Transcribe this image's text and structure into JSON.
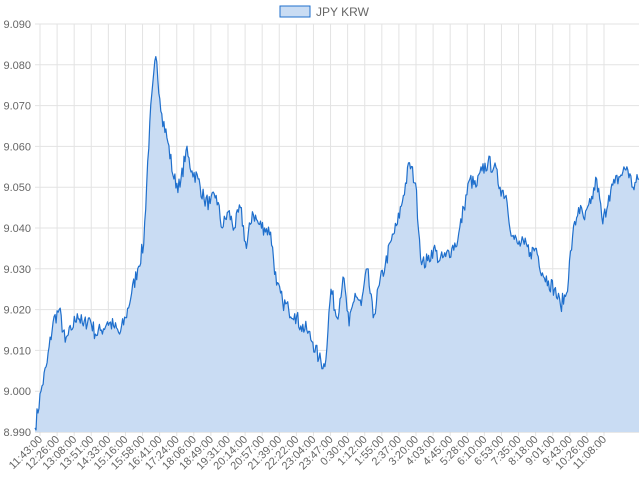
{
  "chart_data": {
    "type": "area",
    "title": "",
    "xlabel": "",
    "ylabel": "",
    "legend": {
      "position": "top-center"
    },
    "grid": true,
    "ylim": [
      8.99,
      9.09
    ],
    "y_ticks": [
      "9.090",
      "9.080",
      "9.070",
      "9.060",
      "9.050",
      "9.040",
      "9.030",
      "9.020",
      "9.010",
      "9.000",
      "8.990"
    ],
    "x_tick_labels": [
      "11:43:00",
      "12:26:00",
      "13:08:00",
      "13:51:00",
      "14:33:00",
      "15:16:00",
      "15:58:00",
      "16:41:00",
      "17:24:00",
      "18:06:00",
      "18:49:00",
      "19:31:00",
      "20:14:00",
      "20:57:00",
      "21:39:00",
      "22:22:00",
      "23:04:00",
      "23:47:00",
      "0:30:00",
      "1:12:00",
      "1:55:00",
      "2:37:00",
      "3:20:00",
      "4:03:00",
      "4:45:00",
      "5:28:00",
      "6:10:00",
      "6:53:00",
      "7:35:00",
      "8:18:00",
      "9:01:00",
      "9:43:00",
      "10:26:00",
      "11:08:00"
    ],
    "series": [
      {
        "name": "JPY KRW",
        "color": "#1f6fcc",
        "fill": "#c9dcf3",
        "values": [
          8.991,
          9.0,
          9.007,
          9.017,
          9.02,
          9.012,
          9.015,
          9.019,
          9.016,
          9.018,
          9.014,
          9.015,
          9.017,
          9.016,
          9.014,
          9.018,
          9.024,
          9.03,
          9.036,
          9.066,
          9.082,
          9.068,
          9.061,
          9.052,
          9.05,
          9.059,
          9.054,
          9.052,
          9.047,
          9.046,
          9.048,
          9.04,
          9.044,
          9.04,
          9.045,
          9.035,
          9.044,
          9.041,
          9.04,
          9.039,
          9.026,
          9.022,
          9.02,
          9.019,
          9.016,
          9.015,
          9.012,
          9.008,
          9.006,
          9.025,
          9.018,
          9.028,
          9.016,
          9.024,
          9.021,
          9.03,
          9.018,
          9.026,
          9.031,
          9.037,
          9.041,
          9.048,
          9.056,
          9.051,
          9.031,
          9.032,
          9.035,
          9.032,
          9.033,
          9.035,
          9.037,
          9.045,
          9.052,
          9.05,
          9.054,
          9.056,
          9.055,
          9.05,
          9.048,
          9.038,
          9.036,
          9.036,
          9.034,
          9.035,
          9.029,
          9.027,
          9.025,
          9.021,
          9.024,
          9.038,
          9.045,
          9.042,
          9.046,
          9.052,
          9.041,
          9.048,
          9.051,
          9.053,
          9.055,
          9.05,
          9.052
        ]
      }
    ]
  }
}
